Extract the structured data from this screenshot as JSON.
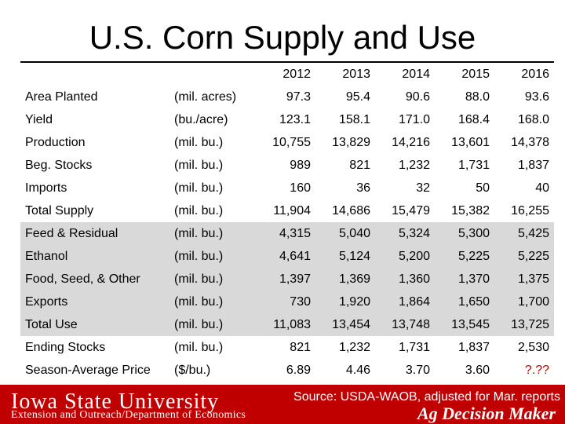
{
  "title": "U.S. Corn Supply and Use",
  "years": [
    "2012",
    "2013",
    "2014",
    "2015",
    "2016"
  ],
  "rows": [
    {
      "label": "Area Planted",
      "unit": "(mil. acres)",
      "values": [
        "97.3",
        "95.4",
        "90.6",
        "88.0",
        "93.6"
      ],
      "shaded": false
    },
    {
      "label": "Yield",
      "unit": "(bu./acre)",
      "values": [
        "123.1",
        "158.1",
        "171.0",
        "168.4",
        "168.0"
      ],
      "shaded": false
    },
    {
      "label": "Production",
      "unit": "(mil. bu.)",
      "values": [
        "10,755",
        "13,829",
        "14,216",
        "13,601",
        "14,378"
      ],
      "shaded": false
    },
    {
      "label": "Beg. Stocks",
      "unit": "(mil. bu.)",
      "values": [
        "989",
        "821",
        "1,232",
        "1,731",
        "1,837"
      ],
      "shaded": false
    },
    {
      "label": "Imports",
      "unit": "(mil. bu.)",
      "values": [
        "160",
        "36",
        "32",
        "50",
        "40"
      ],
      "shaded": false
    },
    {
      "label": "Total Supply",
      "unit": "(mil. bu.)",
      "values": [
        "11,904",
        "14,686",
        "15,479",
        "15,382",
        "16,255"
      ],
      "shaded": false
    },
    {
      "label": "Feed & Residual",
      "unit": "(mil. bu.)",
      "values": [
        "4,315",
        "5,040",
        "5,324",
        "5,300",
        "5,425"
      ],
      "shaded": true
    },
    {
      "label": "Ethanol",
      "unit": "(mil. bu.)",
      "values": [
        "4,641",
        "5,124",
        "5,200",
        "5,225",
        "5,225"
      ],
      "shaded": true
    },
    {
      "label": "Food, Seed, & Other",
      "unit": "(mil. bu.)",
      "values": [
        "1,397",
        "1,369",
        "1,360",
        "1,370",
        "1,375"
      ],
      "shaded": true
    },
    {
      "label": "Exports",
      "unit": "(mil. bu.)",
      "values": [
        "730",
        "1,920",
        "1,864",
        "1,650",
        "1,700"
      ],
      "shaded": true
    },
    {
      "label": "Total Use",
      "unit": "(mil. bu.)",
      "values": [
        "11,083",
        "13,454",
        "13,748",
        "13,545",
        "13,725"
      ],
      "shaded": true
    },
    {
      "label": "Ending Stocks",
      "unit": "(mil. bu.)",
      "values": [
        "821",
        "1,232",
        "1,731",
        "1,837",
        "2,530"
      ],
      "shaded": false
    },
    {
      "label": "Season-Average Price",
      "unit": "($/bu.)",
      "values": [
        "6.89",
        "4.46",
        "3.70",
        "3.60",
        "?.??"
      ],
      "shaded": false
    }
  ],
  "highlight_color": "#c00000",
  "footer": {
    "university": "Iowa State University",
    "department": "Extension and Outreach/Department of Economics",
    "source": "Source: USDA-WAOB, adjusted for Mar. reports",
    "brand": "Ag Decision Maker",
    "bar_color": "#c00000"
  }
}
